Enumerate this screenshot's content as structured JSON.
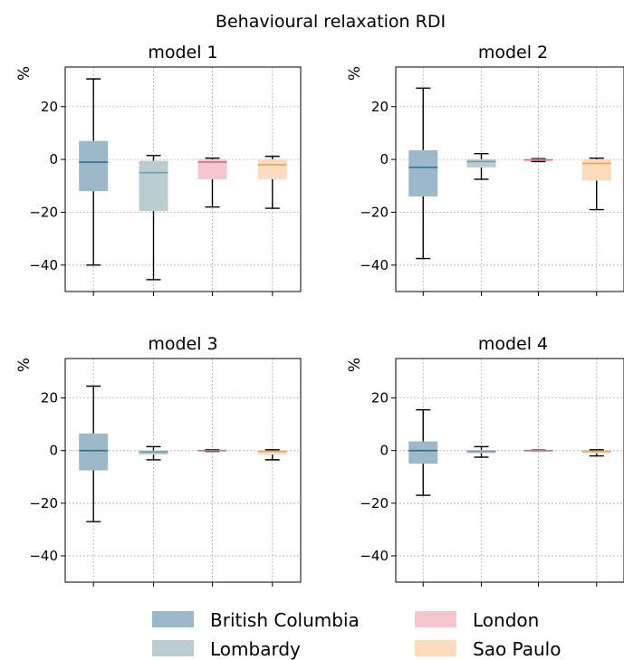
{
  "chart_data": {
    "type": "box",
    "title": "Behavioural relaxation RDI",
    "ylabel": "%",
    "ylim": [
      -50,
      35
    ],
    "yticks": [
      20,
      0,
      -20,
      -40
    ],
    "grid": true,
    "legend": {
      "placement": "bottom",
      "entries": [
        {
          "name": "British Columbia",
          "color": "#9bb9c8"
        },
        {
          "name": "London",
          "color": "#f3c6d0"
        },
        {
          "name": "Lombardy",
          "color": "#b9ccd0"
        },
        {
          "name": "Sao Paulo",
          "color": "#fcdcbf"
        }
      ]
    },
    "series_order": [
      "British Columbia",
      "Lombardy",
      "London",
      "Sao Paulo"
    ],
    "colors": {
      "British Columbia": {
        "fill": "#9bb9c8",
        "median": "#2e6f8f"
      },
      "Lombardy": {
        "fill": "#b9ccd0",
        "median": "#7b9aa0"
      },
      "London": {
        "fill": "#f3c6d0",
        "median": "#cf6f8a"
      },
      "Sao Paulo": {
        "fill": "#fcdcbf",
        "median": "#e8a15e"
      }
    },
    "panels": [
      {
        "title": "model 1",
        "boxes": [
          {
            "series": "British Columbia",
            "whisker_low": -40,
            "q1": -12,
            "median": -1,
            "q3": 7,
            "whisker_high": 30.5
          },
          {
            "series": "Lombardy",
            "whisker_low": -45.5,
            "q1": -19.5,
            "median": -5,
            "q3": -0.5,
            "whisker_high": 1.5
          },
          {
            "series": "London",
            "whisker_low": -18,
            "q1": -7.5,
            "median": -1,
            "q3": 0,
            "whisker_high": 0.5
          },
          {
            "series": "Sao Paulo",
            "whisker_low": -18.5,
            "q1": -7.5,
            "median": -2,
            "q3": 0,
            "whisker_high": 1.2
          }
        ]
      },
      {
        "title": "model 2",
        "boxes": [
          {
            "series": "British Columbia",
            "whisker_low": -37.5,
            "q1": -14,
            "median": -3,
            "q3": 3.5,
            "whisker_high": 27
          },
          {
            "series": "Lombardy",
            "whisker_low": -7.5,
            "q1": -3,
            "median": -0.8,
            "q3": 0,
            "whisker_high": 2.2
          },
          {
            "series": "London",
            "whisker_low": -0.8,
            "q1": -0.5,
            "median": -0.2,
            "q3": 0.2,
            "whisker_high": 0.3
          },
          {
            "series": "Sao Paulo",
            "whisker_low": -19,
            "q1": -8,
            "median": -1.5,
            "q3": 0,
            "whisker_high": 0.5
          }
        ]
      },
      {
        "title": "model 3",
        "boxes": [
          {
            "series": "British Columbia",
            "whisker_low": -27,
            "q1": -7.5,
            "median": 0,
            "q3": 6.5,
            "whisker_high": 24.5
          },
          {
            "series": "Lombardy",
            "whisker_low": -3.5,
            "q1": -1.5,
            "median": -0.5,
            "q3": 0,
            "whisker_high": 1.5
          },
          {
            "series": "London",
            "whisker_low": -0.3,
            "q1": -0.2,
            "median": 0,
            "q3": 0.2,
            "whisker_high": 0.3
          },
          {
            "series": "Sao Paulo",
            "whisker_low": -3.5,
            "q1": -1.5,
            "median": -0.3,
            "q3": 0,
            "whisker_high": 0.3
          }
        ]
      },
      {
        "title": "model 4",
        "boxes": [
          {
            "series": "British Columbia",
            "whisker_low": -17,
            "q1": -5,
            "median": 0,
            "q3": 3.5,
            "whisker_high": 15.5
          },
          {
            "series": "Lombardy",
            "whisker_low": -2.5,
            "q1": -1,
            "median": -0.3,
            "q3": 0.2,
            "whisker_high": 1.5
          },
          {
            "series": "London",
            "whisker_low": -0.2,
            "q1": -0.1,
            "median": 0,
            "q3": 0.1,
            "whisker_high": 0.2
          },
          {
            "series": "Sao Paulo",
            "whisker_low": -2,
            "q1": -1,
            "median": -0.3,
            "q3": 0,
            "whisker_high": 0.3
          }
        ]
      }
    ]
  }
}
